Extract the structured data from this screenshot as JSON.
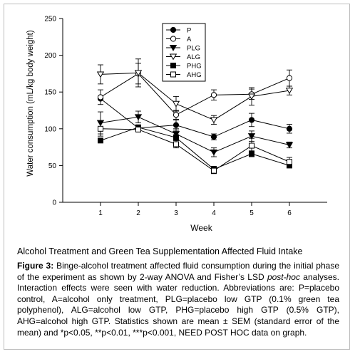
{
  "chart_data": {
    "type": "line",
    "xlabel": "Week",
    "ylabel": "Water consumption (mL/kg body weight)",
    "x": [
      1,
      2,
      3,
      4,
      5,
      6
    ],
    "xlim": [
      0,
      7
    ],
    "ylim": [
      0,
      250
    ],
    "yticks": [
      0,
      50,
      100,
      150,
      200,
      250
    ],
    "xticks": [
      1,
      2,
      3,
      4,
      5,
      6
    ],
    "grid": false,
    "legend_position": "top-center",
    "series": [
      {
        "name": "P",
        "marker": "circle-filled",
        "values": [
          141,
          101,
          105,
          89,
          112,
          100
        ],
        "err": [
          0,
          0,
          7,
          4,
          9,
          6
        ]
      },
      {
        "name": "A",
        "marker": "circle-open",
        "values": [
          143,
          175,
          119,
          146,
          147,
          169
        ],
        "err": [
          10,
          14,
          6,
          7,
          7,
          11
        ]
      },
      {
        "name": "PLG",
        "marker": "triangle-filled",
        "values": [
          108,
          116,
          93,
          68,
          90,
          78
        ],
        "err": [
          15,
          8,
          7,
          6,
          7,
          4
        ]
      },
      {
        "name": "ALG",
        "marker": "triangle-open",
        "values": [
          174,
          176,
          134,
          112,
          144,
          152
        ],
        "err": [
          13,
          19,
          10,
          6,
          12,
          6
        ]
      },
      {
        "name": "PHG",
        "marker": "square-filled",
        "values": [
          84,
          102,
          88,
          45,
          66,
          50
        ],
        "err": [
          0,
          0,
          4,
          4,
          4,
          3
        ]
      },
      {
        "name": "AHG",
        "marker": "square-open",
        "values": [
          100,
          99,
          79,
          43,
          77,
          55
        ],
        "err": [
          10,
          3,
          5,
          4,
          10,
          6
        ]
      }
    ]
  },
  "subtitle": "Alcohol Treatment and Green Tea Supplementation Affected Fluid Intake",
  "caption": {
    "label": "Figure 3:",
    "text_a": " Binge-alcohol treatment affected fluid consumption during the initial phase of the experiment as shown by 2-way ANOVA and Fisher’s LSD ",
    "italic": "post-hoc",
    "text_b": " analyses. Interaction effects were seen with water reduction. Abbreviations are: P=placebo control, A=alcohol only treatment, PLG=placebo low GTP (0.1% green tea polyphenol), ALG=alcohol low GTP, PHG=placebo high GTP (0.5% GTP), AHG=alcohol high GTP. Statistics shown are mean ± SEM (standard error of the mean) and *p<0.05, **p<0.01, ***p<0.001, NEED POST HOC data on graph."
  }
}
